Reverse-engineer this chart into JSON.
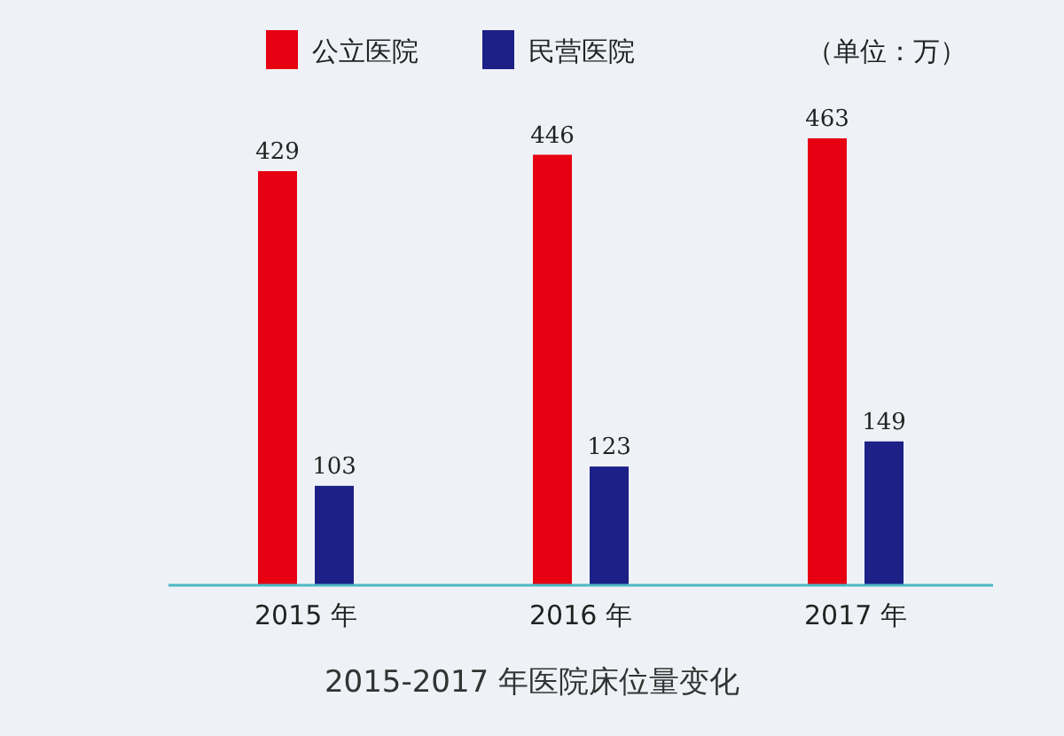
{
  "chart_data": {
    "type": "bar",
    "title": "2015-2017 年医院床位量变化",
    "categories": [
      "2015 年",
      "2016 年",
      "2017 年"
    ],
    "series": [
      {
        "name": "公立医院",
        "color": "#e60012",
        "values": [
          429,
          446,
          463
        ]
      },
      {
        "name": "民营医院",
        "color": "#1d2087",
        "values": [
          103,
          123,
          149
        ]
      }
    ],
    "data_labels": true,
    "legend": "top",
    "tick_labels": "x",
    "annotations": [
      "（单位：万）"
    ]
  }
}
